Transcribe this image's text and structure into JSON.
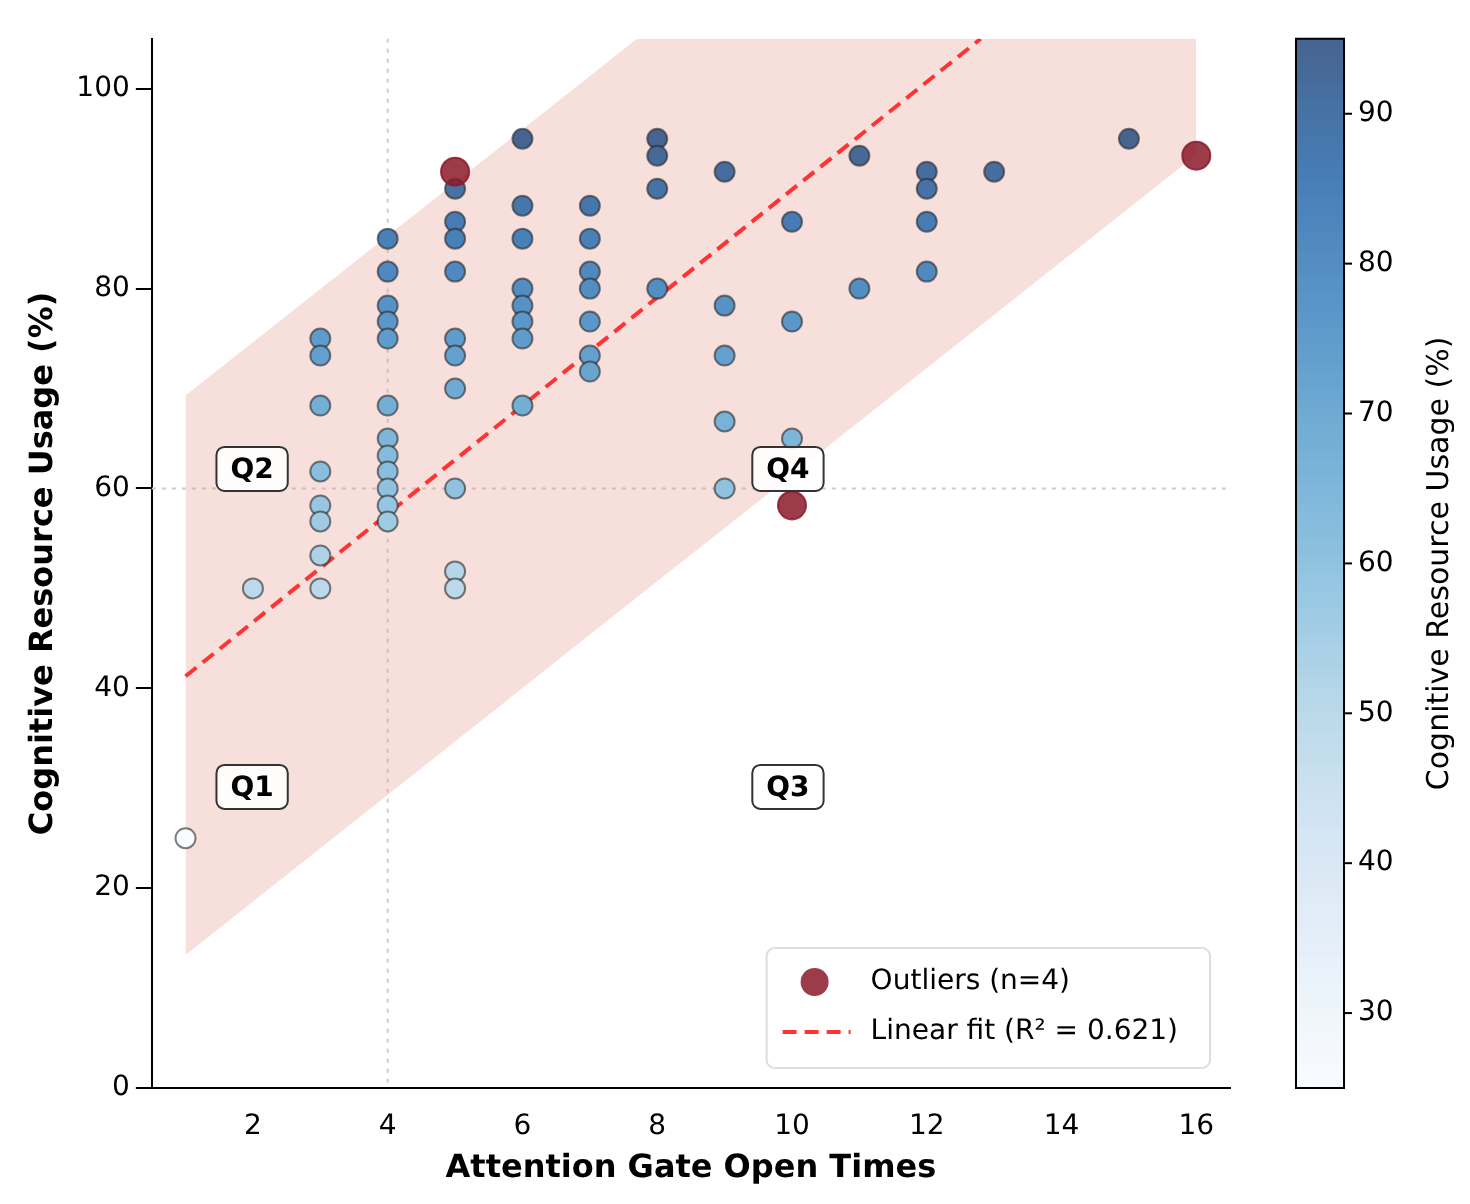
{
  "chart_data": {
    "type": "scatter",
    "xlabel": "Attention Gate Open Times",
    "ylabel": "Cognitive Resource Usage (%)",
    "clabel": "Cognitive Resource Usage (%)",
    "xlim": [
      0.5,
      16.5
    ],
    "xticks": [
      2,
      4,
      6,
      8,
      10,
      12,
      14,
      16
    ],
    "ylim": [
      0,
      105
    ],
    "yticks": [
      0,
      20,
      40,
      60,
      80,
      100
    ],
    "clim": [
      25,
      95
    ],
    "cticks": [
      30,
      40,
      50,
      60,
      70,
      80,
      90
    ],
    "grid": false,
    "legend": "bottom right",
    "series": [
      {
        "type": "scatter",
        "marker": "circle",
        "x": [
          1,
          2,
          3,
          3,
          3,
          3,
          3,
          3,
          3,
          3,
          4,
          4,
          4,
          4,
          4,
          4,
          4,
          4,
          4,
          4,
          4,
          4,
          5,
          5,
          5,
          5,
          5,
          5,
          5,
          5,
          5,
          5,
          6,
          6,
          6,
          6,
          6,
          6,
          6,
          6,
          7,
          7,
          7,
          7,
          7,
          7,
          7,
          8,
          8,
          8,
          8,
          9,
          9,
          9,
          9,
          9,
          10,
          10,
          10,
          11,
          11,
          12,
          12,
          12,
          12,
          13,
          15
        ],
        "values": [
          25,
          50,
          75,
          73.3,
          68.3,
          61.7,
          58.3,
          56.7,
          53.3,
          50,
          85,
          81.7,
          78.3,
          76.7,
          75,
          68.3,
          65,
          63.3,
          61.7,
          60,
          58.3,
          56.7,
          90,
          86.7,
          85,
          81.7,
          75,
          73.3,
          70,
          60,
          51.7,
          50,
          95,
          88.3,
          85,
          80,
          78.3,
          76.7,
          75,
          68.3,
          88.3,
          85,
          81.7,
          80,
          76.7,
          73.3,
          71.7,
          95,
          93.3,
          90,
          80,
          91.7,
          78.3,
          73.3,
          66.7,
          60,
          86.7,
          76.7,
          65,
          93.3,
          80,
          91.7,
          90,
          86.7,
          81.7,
          91.7,
          95
        ],
        "colors": [
          "#f9fcff",
          "#bbd9ea",
          "#609ccb",
          "#64a0ce",
          "#73aed5",
          "#8abede",
          "#97c6e2",
          "#9ecae3",
          "#add2e7",
          "#bbd9ea",
          "#4880b8",
          "#4f89bf",
          "#5792c6",
          "#5b97c9",
          "#609ccb",
          "#73aed5",
          "#7eb6d9",
          "#84badc",
          "#8abede",
          "#90c2e0",
          "#97c6e2",
          "#9ecae3",
          "#4672a5",
          "#467bb3",
          "#4880b8",
          "#4f89bf",
          "#609ccb",
          "#64a0ce",
          "#6eaad3",
          "#90c2e0",
          "#b4d6e8",
          "#bbd9ea",
          "#466490",
          "#4677ac",
          "#4880b8",
          "#538ec2",
          "#5792c6",
          "#5b97c9",
          "#609ccb",
          "#73aed5",
          "#4677ac",
          "#4880b8",
          "#4f89bf",
          "#538ec2",
          "#5b97c9",
          "#64a0ce",
          "#69a5d0",
          "#466490",
          "#466997",
          "#4672a5",
          "#538ec2",
          "#466d9e",
          "#5792c6",
          "#64a0ce",
          "#78b2d7",
          "#90c2e0",
          "#467bb3",
          "#5b97c9",
          "#7eb6d9",
          "#466997",
          "#538ec2",
          "#466d9e",
          "#4672a5",
          "#467bb3",
          "#4f89bf",
          "#466d9e",
          "#466490"
        ]
      },
      {
        "type": "scatter",
        "marker": "circle",
        "name": "Outliers (n=4)",
        "color": "#8b1a2a",
        "x": [
          5,
          10,
          16
        ],
        "values": [
          91.7,
          58.3,
          93.3
        ]
      },
      {
        "type": "line",
        "name": "Linear fit (R² = 0.621)",
        "color": "#ff3333",
        "line_style": "dashed",
        "marker": "none",
        "x": [
          1,
          7.7,
          12.8,
          16
        ],
        "values": [
          41.2,
          77.5,
          105,
          null
        ],
        "lower": [
          13.3,
          49.1,
          76.3,
          93.4
        ],
        "upper": [
          69.3,
          105,
          105,
          105
        ]
      }
    ],
    "ref_lines": [
      {
        "axis": "x",
        "value": 4,
        "color": "#cccccc",
        "line_style": "dotted"
      },
      {
        "axis": "y",
        "value": 60,
        "color": "#cccccc",
        "line_style": "dotted"
      }
    ],
    "annotations": [
      "Q1",
      "Q2",
      "Q3",
      "Q4"
    ]
  }
}
